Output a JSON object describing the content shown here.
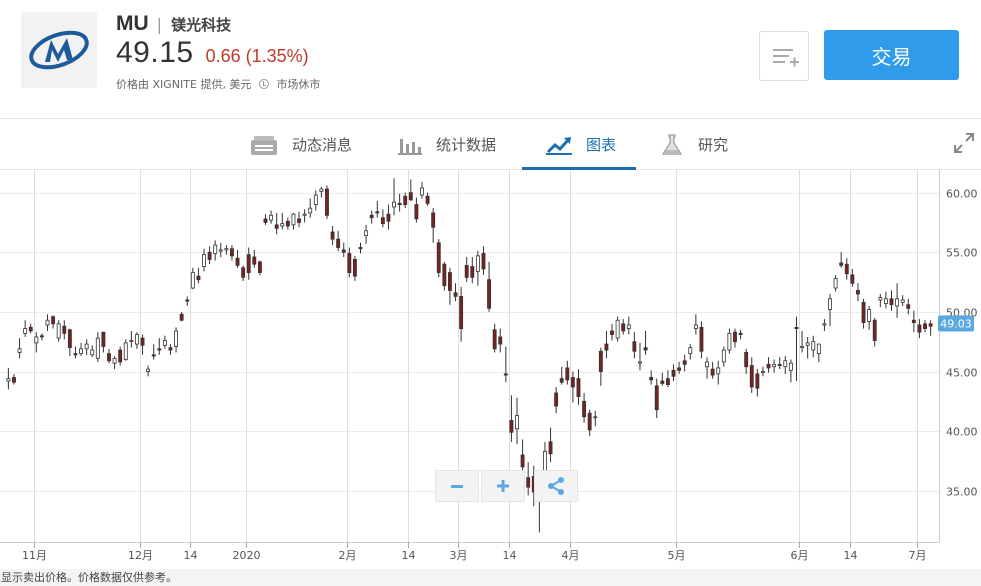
{
  "header": {
    "symbol": "MU",
    "separator": "|",
    "company_name": "镁光科技",
    "price": "49.15",
    "change": "0.66 (1.35%)",
    "provider": "价格由 XIGNITE 提供, 美元",
    "market_status": "市场休市",
    "trade_label": "交易",
    "colors": {
      "change": "#c0392b",
      "trade_button": "#2f9bea",
      "logo": "#1e5a9c"
    }
  },
  "tabs": [
    {
      "label": "动态消息",
      "icon": "news-icon"
    },
    {
      "label": "统计数据",
      "icon": "bar-stats-icon"
    },
    {
      "label": "图表",
      "icon": "chart-trend-icon",
      "active": true
    },
    {
      "label": "研究",
      "icon": "flask-icon"
    }
  ],
  "footer": {
    "disclaimer": "显示卖出价格。价格数据仅供参考。"
  },
  "chart_data": {
    "type": "candlestick",
    "y_ticks": [
      "60.00",
      "55.00",
      "50.00",
      "45.00",
      "40.00",
      "35.00"
    ],
    "x_ticks": [
      "11月",
      "12月",
      "14",
      "2020",
      "2月",
      "14",
      "3月",
      "14",
      "4月",
      "5月",
      "6月",
      "14",
      "7月"
    ],
    "last_price_label": "49.03",
    "ylim": [
      30.7,
      61.9
    ],
    "colors": {
      "up": "#ffffff",
      "down": "#7a2222",
      "wick": "#333333",
      "label_bg": "#5aa8e0"
    },
    "ohlc": [
      [
        44.2,
        45.3,
        43.5,
        44.4
      ],
      [
        44.5,
        44.8,
        43.9,
        44.1
      ],
      [
        46.6,
        47.8,
        46.1,
        46.9
      ],
      [
        48.2,
        49.3,
        47.9,
        48.6
      ],
      [
        48.7,
        49.0,
        48.2,
        48.4
      ],
      [
        47.4,
        48.3,
        46.6,
        47.9
      ],
      [
        48.0,
        48.2,
        47.6,
        47.9
      ],
      [
        48.9,
        49.8,
        48.4,
        49.3
      ],
      [
        49.6,
        49.7,
        48.6,
        49.0
      ],
      [
        47.8,
        49.3,
        47.5,
        49.0
      ],
      [
        48.8,
        49.3,
        47.7,
        48.2
      ],
      [
        48.5,
        48.6,
        46.3,
        47.0
      ],
      [
        46.5,
        47.1,
        46.1,
        46.4
      ],
      [
        46.5,
        47.4,
        46.3,
        46.9
      ],
      [
        46.9,
        47.7,
        46.4,
        47.3
      ],
      [
        46.4,
        47.2,
        46.2,
        46.8
      ],
      [
        46.1,
        48.3,
        45.8,
        47.8
      ],
      [
        48.3,
        48.3,
        46.6,
        47.1
      ],
      [
        46.5,
        46.9,
        45.7,
        45.9
      ],
      [
        45.7,
        46.3,
        45.2,
        46.1
      ],
      [
        46.8,
        47.1,
        45.5,
        45.8
      ],
      [
        46.0,
        47.7,
        45.9,
        47.4
      ],
      [
        47.6,
        48.4,
        47.0,
        47.6
      ],
      [
        47.3,
        48.3,
        46.9,
        48.1
      ],
      [
        47.8,
        48.1,
        46.4,
        47.2
      ],
      [
        45.0,
        45.5,
        44.6,
        45.2
      ],
      [
        46.4,
        47.3,
        46.0,
        46.3
      ],
      [
        46.9,
        47.8,
        46.4,
        46.8
      ],
      [
        47.2,
        48.0,
        46.9,
        47.6
      ],
      [
        47.0,
        47.3,
        46.4,
        46.8
      ],
      [
        47.1,
        48.7,
        46.6,
        48.4
      ],
      [
        49.8,
        50.0,
        49.2,
        49.3
      ],
      [
        51.0,
        51.3,
        50.5,
        50.9
      ],
      [
        52.0,
        53.7,
        51.9,
        53.3
      ],
      [
        53.0,
        53.7,
        52.4,
        52.7
      ],
      [
        53.8,
        55.3,
        53.4,
        54.8
      ],
      [
        55.0,
        55.5,
        54.0,
        54.4
      ],
      [
        54.9,
        56.0,
        54.3,
        55.6
      ],
      [
        55.1,
        55.8,
        54.6,
        55.2
      ],
      [
        55.2,
        55.6,
        54.8,
        55.3
      ],
      [
        55.3,
        55.6,
        54.3,
        54.7
      ],
      [
        54.5,
        55.2,
        53.7,
        53.9
      ],
      [
        53.7,
        53.9,
        52.6,
        52.9
      ],
      [
        54.8,
        55.4,
        52.7,
        53.3
      ],
      [
        54.6,
        55.2,
        53.7,
        54.0
      ],
      [
        54.2,
        54.3,
        53.1,
        53.3
      ],
      [
        57.8,
        58.2,
        57.3,
        57.5
      ],
      [
        57.7,
        58.5,
        57.4,
        58.1
      ],
      [
        57.3,
        58.3,
        56.5,
        57.0
      ],
      [
        57.2,
        58.3,
        56.9,
        57.4
      ],
      [
        57.6,
        57.9,
        56.9,
        57.2
      ],
      [
        57.3,
        58.3,
        56.9,
        58.2
      ],
      [
        57.8,
        58.4,
        57.1,
        57.5
      ],
      [
        58.1,
        58.6,
        57.5,
        58.2
      ],
      [
        58.3,
        59.5,
        57.9,
        58.7
      ],
      [
        59.0,
        60.2,
        58.5,
        59.8
      ],
      [
        60.1,
        60.5,
        59.6,
        60.3
      ],
      [
        60.3,
        60.6,
        57.8,
        58.1
      ],
      [
        56.7,
        57.2,
        55.6,
        56.1
      ],
      [
        56.1,
        56.8,
        55.1,
        55.4
      ],
      [
        55.2,
        55.8,
        54.6,
        55.0
      ],
      [
        54.9,
        55.4,
        52.9,
        53.3
      ],
      [
        54.4,
        54.7,
        52.6,
        53.0
      ],
      [
        55.4,
        55.8,
        54.9,
        55.3
      ],
      [
        56.4,
        57.3,
        55.7,
        56.8
      ],
      [
        58.1,
        58.5,
        57.4,
        57.9
      ],
      [
        58.4,
        59.3,
        57.9,
        58.3
      ],
      [
        57.9,
        58.6,
        57.1,
        57.4
      ],
      [
        58.2,
        59.0,
        56.9,
        57.6
      ],
      [
        58.8,
        61.2,
        58.1,
        59.2
      ],
      [
        59.1,
        59.9,
        58.4,
        59.0
      ],
      [
        59.7,
        60.0,
        58.7,
        59.0
      ],
      [
        60.0,
        61.1,
        59.3,
        59.4
      ],
      [
        59.0,
        59.6,
        57.5,
        57.8
      ],
      [
        59.8,
        60.9,
        59.5,
        60.4
      ],
      [
        59.7,
        60.0,
        58.9,
        59.1
      ],
      [
        58.3,
        58.7,
        55.8,
        57.1
      ],
      [
        55.8,
        56.1,
        52.9,
        53.3
      ],
      [
        54.0,
        54.2,
        51.8,
        52.2
      ],
      [
        53.3,
        53.7,
        50.6,
        51.8
      ],
      [
        51.6,
        52.4,
        50.9,
        51.3
      ],
      [
        51.3,
        52.1,
        47.5,
        48.6
      ],
      [
        53.9,
        54.6,
        52.5,
        52.9
      ],
      [
        53.8,
        54.6,
        52.4,
        52.9
      ],
      [
        53.4,
        55.1,
        52.2,
        54.7
      ],
      [
        54.9,
        55.5,
        53.1,
        53.6
      ],
      [
        52.7,
        54.2,
        50.0,
        50.3
      ],
      [
        48.5,
        49.0,
        46.6,
        46.9
      ],
      [
        47.9,
        48.6,
        46.6,
        47.3
      ],
      [
        44.8,
        47.1,
        44.1,
        44.7
      ],
      [
        40.9,
        43.0,
        39.1,
        39.9
      ],
      [
        40.2,
        42.8,
        38.9,
        41.3
      ],
      [
        38.0,
        39.3,
        36.5,
        37.0
      ],
      [
        36.1,
        37.4,
        34.6,
        35.3
      ],
      [
        36.2,
        37.1,
        33.7,
        34.9
      ],
      [
        34.1,
        36.2,
        31.5,
        35.8
      ],
      [
        36.7,
        39.1,
        35.8,
        38.3
      ],
      [
        39.1,
        40.3,
        37.4,
        38.1
      ],
      [
        43.2,
        43.7,
        41.5,
        42.1
      ],
      [
        44.4,
        45.4,
        43.9,
        44.1
      ],
      [
        45.3,
        45.9,
        43.9,
        44.3
      ],
      [
        44.5,
        45.0,
        42.4,
        43.7
      ],
      [
        44.4,
        45.2,
        42.2,
        42.9
      ],
      [
        42.5,
        43.2,
        40.7,
        41.2
      ],
      [
        41.5,
        41.8,
        39.6,
        40.1
      ],
      [
        41.2,
        41.7,
        40.4,
        41.2
      ],
      [
        46.7,
        47.0,
        43.8,
        45.0
      ],
      [
        47.3,
        48.4,
        46.1,
        46.8
      ],
      [
        48.4,
        49.0,
        47.6,
        48.1
      ],
      [
        47.8,
        49.6,
        47.5,
        49.3
      ],
      [
        49.0,
        49.4,
        48.1,
        48.4
      ],
      [
        48.6,
        49.6,
        48.1,
        48.9
      ],
      [
        47.5,
        48.3,
        46.1,
        46.7
      ],
      [
        45.7,
        47.4,
        45.1,
        45.8
      ],
      [
        47.0,
        48.4,
        46.4,
        46.8
      ],
      [
        44.5,
        45.1,
        43.9,
        44.3
      ],
      [
        43.8,
        44.4,
        41.1,
        41.8
      ],
      [
        44.2,
        44.9,
        43.8,
        44.0
      ],
      [
        44.4,
        45.1,
        43.7,
        43.9
      ],
      [
        45.1,
        45.6,
        44.2,
        44.6
      ],
      [
        45.3,
        45.8,
        44.8,
        45.1
      ],
      [
        45.9,
        46.4,
        45.0,
        45.6
      ],
      [
        46.5,
        47.3,
        46.0,
        47.0
      ],
      [
        48.6,
        49.8,
        48.1,
        48.9
      ],
      [
        48.7,
        49.2,
        46.1,
        46.7
      ],
      [
        45.4,
        46.2,
        44.4,
        45.8
      ],
      [
        45.2,
        45.8,
        44.4,
        44.7
      ],
      [
        44.8,
        45.9,
        43.9,
        45.3
      ],
      [
        45.8,
        47.1,
        45.4,
        46.8
      ],
      [
        46.8,
        48.6,
        46.5,
        48.2
      ],
      [
        48.3,
        48.6,
        47.0,
        47.5
      ],
      [
        48.2,
        48.5,
        47.7,
        48.1
      ],
      [
        46.6,
        46.9,
        44.8,
        45.4
      ],
      [
        45.5,
        46.2,
        43.2,
        43.7
      ],
      [
        44.8,
        45.2,
        42.9,
        43.6
      ],
      [
        44.9,
        45.4,
        44.6,
        45.0
      ],
      [
        45.6,
        46.2,
        44.9,
        45.3
      ],
      [
        45.4,
        46.0,
        44.9,
        45.6
      ],
      [
        45.6,
        46.2,
        45.2,
        45.5
      ],
      [
        45.4,
        46.3,
        44.8,
        45.9
      ],
      [
        45.1,
        46.0,
        44.1,
        45.7
      ],
      [
        48.7,
        49.6,
        44.2,
        48.6
      ],
      [
        47.0,
        48.4,
        46.6,
        47.1
      ],
      [
        47.2,
        47.9,
        46.1,
        47.4
      ],
      [
        46.8,
        48.0,
        46.2,
        47.5
      ],
      [
        46.5,
        47.3,
        45.8,
        47.3
      ],
      [
        48.9,
        49.4,
        48.4,
        49.0
      ],
      [
        50.2,
        51.5,
        48.8,
        51.1
      ],
      [
        52.0,
        53.1,
        51.7,
        52.8
      ],
      [
        54.1,
        55.0,
        53.7,
        53.9
      ],
      [
        54.0,
        54.5,
        52.7,
        53.2
      ],
      [
        53.1,
        53.6,
        52.1,
        52.4
      ],
      [
        51.8,
        52.4,
        50.9,
        51.5
      ],
      [
        50.8,
        51.1,
        48.6,
        49.1
      ],
      [
        49.2,
        50.5,
        48.5,
        50.2
      ],
      [
        49.3,
        49.5,
        47.1,
        47.6
      ],
      [
        51.0,
        51.5,
        50.4,
        51.2
      ],
      [
        50.7,
        51.7,
        50.3,
        51.1
      ],
      [
        51.1,
        51.8,
        50.1,
        50.6
      ],
      [
        50.5,
        52.4,
        49.5,
        51.1
      ],
      [
        50.8,
        51.4,
        50.5,
        51.0
      ],
      [
        50.6,
        51.1,
        49.8,
        50.3
      ],
      [
        49.3,
        50.1,
        48.3,
        49.1
      ],
      [
        48.9,
        49.4,
        47.8,
        48.3
      ],
      [
        49.0,
        49.3,
        48.3,
        48.6
      ],
      [
        49.0,
        49.3,
        48.0,
        48.8
      ]
    ]
  }
}
